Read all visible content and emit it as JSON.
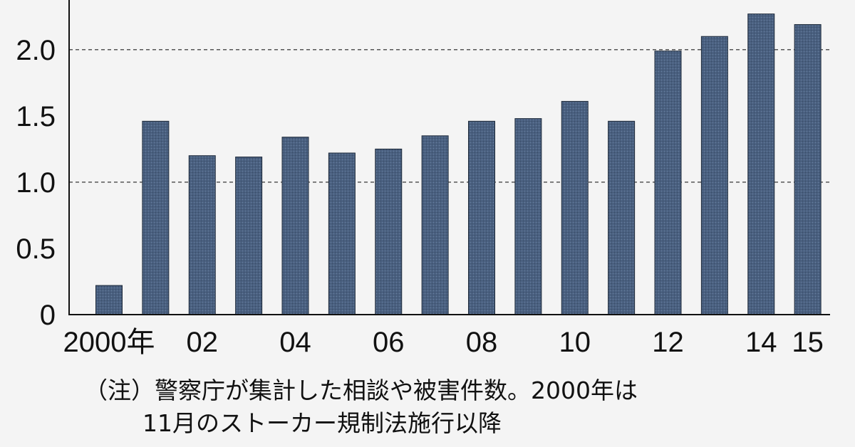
{
  "chart_data": {
    "type": "bar",
    "title": "",
    "xlabel": "",
    "ylabel": "",
    "ylim": [
      0,
      2.3
    ],
    "y_ticks": [
      "0",
      "0.5",
      "1.0",
      "1.5",
      "2.0"
    ],
    "y_tick_values": [
      0,
      0.5,
      1.0,
      1.5,
      2.0
    ],
    "grid": "dashed at 1.0 and 2.0",
    "categories": [
      "2000",
      "2001",
      "2002",
      "2003",
      "2004",
      "2005",
      "2006",
      "2007",
      "2008",
      "2009",
      "2010",
      "2011",
      "2012",
      "2013",
      "2014",
      "2015"
    ],
    "x_tick_labels": [
      "2000年",
      "",
      "02",
      "",
      "04",
      "",
      "06",
      "",
      "08",
      "",
      "10",
      "",
      "12",
      "",
      "14",
      "15"
    ],
    "values": [
      0.22,
      1.46,
      1.2,
      1.19,
      1.34,
      1.22,
      1.25,
      1.35,
      1.46,
      1.48,
      1.61,
      1.46,
      1.99,
      2.1,
      2.27,
      2.19
    ],
    "bar_color": "#4a6080",
    "gridline_values": [
      1.0,
      2.0
    ]
  },
  "note": {
    "line1": "（注）警察庁が集計した相談や被害件数。2000年は",
    "line2": "11月のストーカー規制法施行以降"
  }
}
